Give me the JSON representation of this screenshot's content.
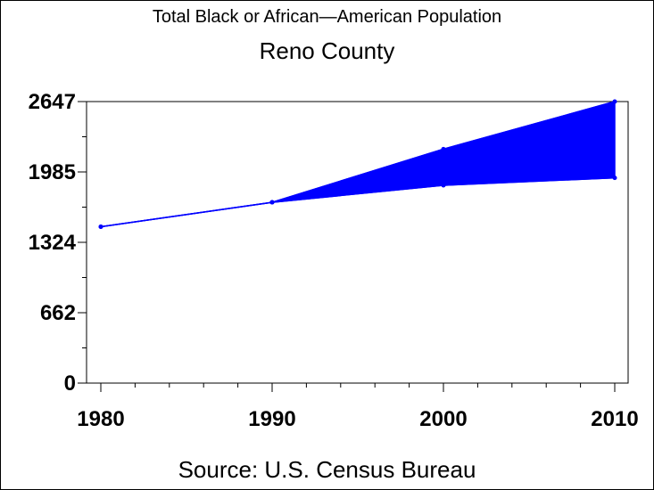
{
  "title": "Total Black or African—American Population",
  "subtitle": "Reno County",
  "source": "Source: U.S. Census Bureau",
  "colors": {
    "series": "#0000ff",
    "axis": "#000000"
  },
  "chart_data": {
    "type": "area",
    "x": [
      1980,
      1990,
      2000,
      2010
    ],
    "x_tick_labels": [
      "1980",
      "1990",
      "2000",
      "2010"
    ],
    "y_tick_labels": [
      "0",
      "662",
      "1324",
      "1985",
      "2647"
    ],
    "y_ticks": [
      0,
      662,
      1324,
      1985,
      2647
    ],
    "ylim": [
      0,
      2647
    ],
    "xlim": [
      1980,
      2010
    ],
    "series": [
      {
        "values": [
          1470,
          1700,
          2200,
          2647
        ]
      },
      {
        "values": [
          1470,
          1700,
          1860,
          1930
        ]
      }
    ],
    "grid": false,
    "legend": "none"
  }
}
